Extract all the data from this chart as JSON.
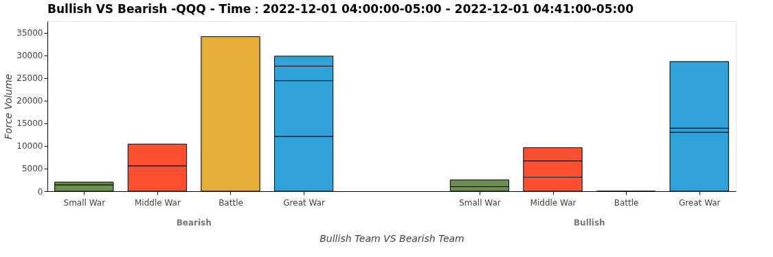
{
  "chart_data": {
    "type": "bar",
    "title": "Bullish VS Bearish -QQQ - Time：2022-12-01 04:00:00-05:00 - 2022-12-01 04:41:00-05:00",
    "xlabel": "Bullish Team VS Bearish Team",
    "ylabel": "Force Volume",
    "categories": [
      "Small War",
      "Middle War",
      "Battle",
      "Great War",
      "Small War",
      "Middle War",
      "Battle",
      "Great War"
    ],
    "annotations": [
      "Bearish",
      "Bullish"
    ],
    "stacked": true,
    "series": [
      {
        "values": [
          1400,
          5600,
          34100,
          12100,
          1000,
          3100,
          0,
          13000
        ],
        "colors": [
          "#6d904f",
          "#fc4f30",
          "#e5ae38",
          "#30a2da",
          "#6d904f",
          "#fc4f30",
          "#e5ae38",
          "#30a2da"
        ]
      },
      {
        "values": [
          600,
          4800,
          null,
          12300,
          1500,
          3600,
          null,
          900
        ],
        "colors": [
          "#6d904f",
          "#fc4f30",
          "#e5ae38",
          "#30a2da",
          "#6d904f",
          "#fc4f30",
          "#e5ae38",
          "#30a2da"
        ]
      },
      {
        "values": [
          null,
          null,
          null,
          3200,
          null,
          2900,
          null,
          14700
        ],
        "colors": [
          "#6d904f",
          "#fc4f30",
          "#e5ae38",
          "#30a2da",
          "#6d904f",
          "#fc4f30",
          "#e5ae38",
          "#30a2da"
        ]
      },
      {
        "values": [
          null,
          null,
          null,
          2200,
          null,
          null,
          null,
          null
        ],
        "color": "#30a2da"
      }
    ],
    "ylim": [
      0,
      37500
    ],
    "yticks": [
      0,
      5000,
      10000,
      15000,
      20000,
      25000,
      30000,
      35000
    ],
    "grid": false
  }
}
